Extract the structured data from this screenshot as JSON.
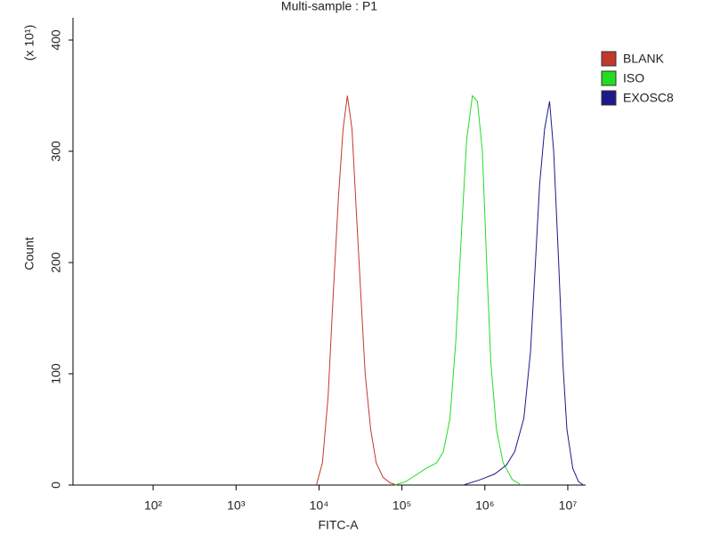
{
  "chart_data": {
    "type": "line",
    "title": "Multi-sample : P1",
    "xlabel": "FITC-A",
    "ylabel": "Count",
    "ylabel_multiplier": "(x 10¹)",
    "xscale": "log",
    "grid": false,
    "legend": "right",
    "xlim": [
      10.8,
      16400000
    ],
    "ylim": [
      0,
      420
    ],
    "xticks": [
      {
        "value": 100,
        "label": "10²"
      },
      {
        "value": 1000,
        "label": "10³"
      },
      {
        "value": 10000,
        "label": "10⁴"
      },
      {
        "value": 100000,
        "label": "10⁵"
      },
      {
        "value": 1000000,
        "label": "10⁶"
      },
      {
        "value": 10000000,
        "label": "10⁷"
      }
    ],
    "yticks": [
      0,
      100,
      200,
      300,
      400
    ],
    "series": [
      {
        "name": "BLANK",
        "color": "#c0392b",
        "x": [
          9300,
          11000,
          12900,
          14800,
          17200,
          19500,
          22000,
          25000,
          28000,
          32000,
          36000,
          42000,
          49000,
          59000,
          72000,
          87000
        ],
        "values": [
          0,
          20,
          80,
          170,
          260,
          320,
          350,
          320,
          250,
          170,
          100,
          50,
          20,
          7,
          2,
          0
        ]
      },
      {
        "name": "ISO",
        "color": "#22dd22",
        "x": [
          81000,
          110000,
          141000,
          195000,
          263000,
          316000,
          380000,
          447000,
          525000,
          603000,
          708000,
          813000,
          933000,
          1050000,
          1180000,
          1380000,
          1660000,
          2140000,
          2750000
        ],
        "values": [
          0,
          3,
          8,
          15,
          20,
          30,
          60,
          130,
          230,
          310,
          350,
          345,
          300,
          200,
          110,
          50,
          20,
          5,
          0
        ]
      },
      {
        "name": "EXOSC8",
        "color": "#1a1a8c",
        "x": [
          550000,
          890000,
          1320000,
          1820000,
          2290000,
          2950000,
          3550000,
          4070000,
          4570000,
          5250000,
          6030000,
          6760000,
          7760000,
          8710000,
          9770000,
          11500000,
          13500000,
          15500000
        ],
        "values": [
          0,
          5,
          10,
          18,
          30,
          60,
          120,
          200,
          270,
          320,
          345,
          300,
          200,
          110,
          50,
          15,
          3,
          0
        ]
      }
    ]
  }
}
